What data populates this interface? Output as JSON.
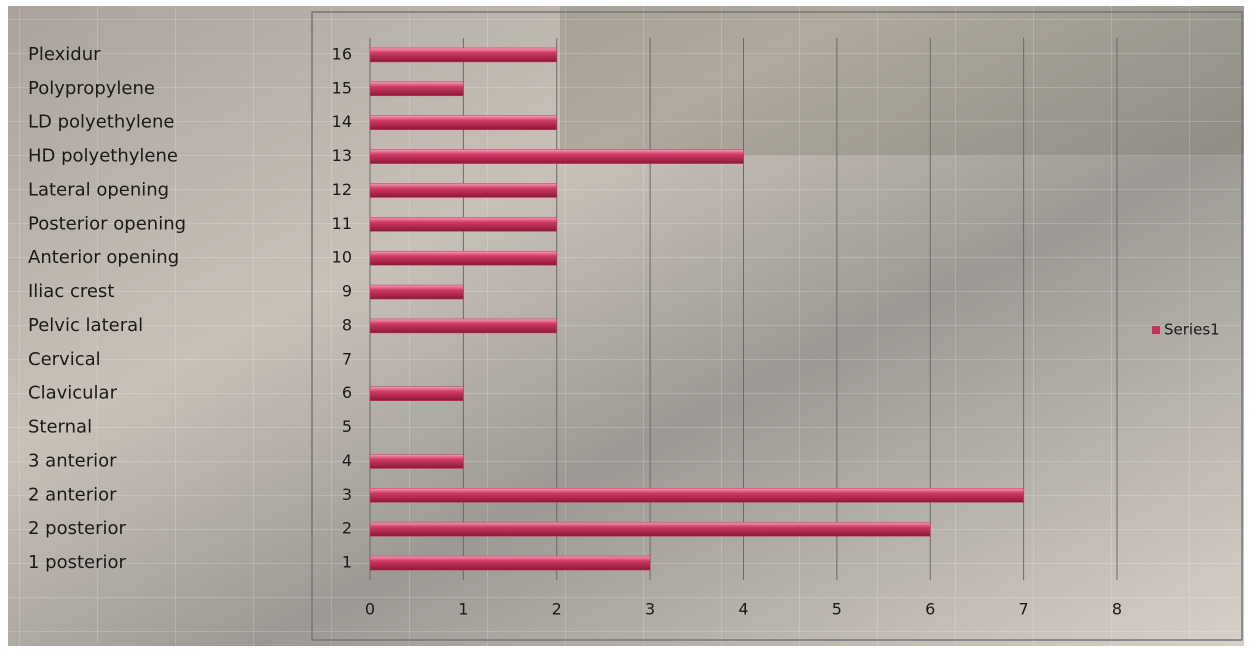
{
  "chart_data": {
    "type": "bar",
    "orientation": "horizontal",
    "categories": [
      "1",
      "2",
      "3",
      "4",
      "5",
      "6",
      "7",
      "8",
      "9",
      "10",
      "11",
      "12",
      "13",
      "14",
      "15",
      "16"
    ],
    "row_labels": [
      "1 posterior",
      "2 posterior",
      "2 anterior",
      "3 anterior",
      "Sternal",
      "Clavicular",
      "Cervical",
      "Pelvic lateral",
      "Iliac crest",
      "Anterior opening",
      "Posterior opening",
      "Lateral opening",
      "HD polyethylene",
      "LD polyethylene",
      "Polypropylene",
      "Plexidur"
    ],
    "series": [
      {
        "name": "Series1",
        "color": "#c8325a",
        "values": [
          3,
          6,
          7,
          1,
          0,
          1,
          0,
          2,
          1,
          2,
          2,
          2,
          4,
          2,
          1,
          2
        ]
      }
    ],
    "xlim": [
      0,
      8
    ],
    "xticks": [
      0,
      1,
      2,
      3,
      4,
      5,
      6,
      7,
      8
    ],
    "grid": true,
    "legend": "right"
  }
}
